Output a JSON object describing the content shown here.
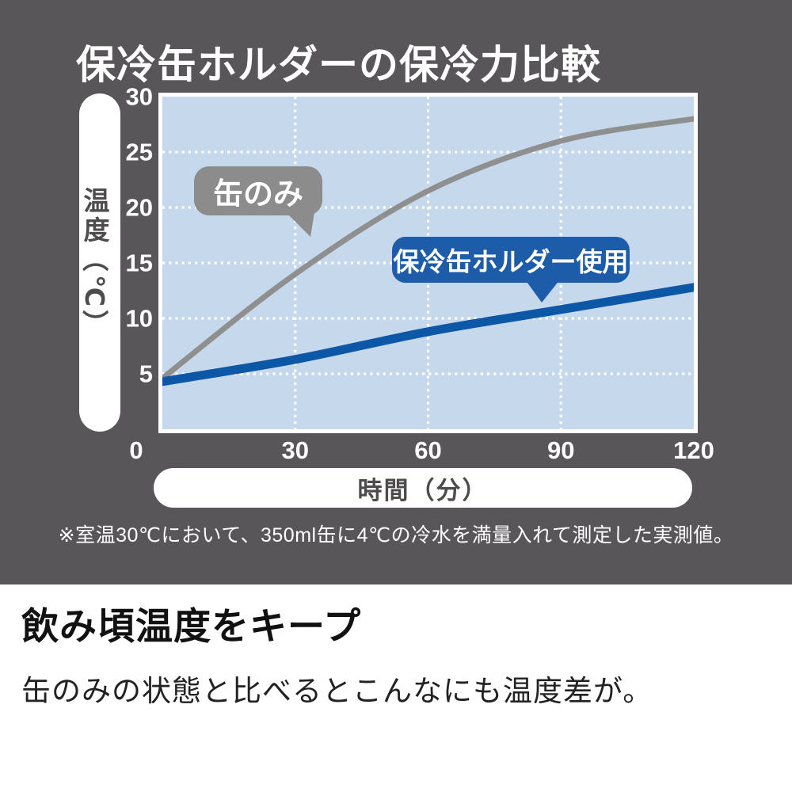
{
  "title": "保冷缶ホルダーの保冷力比較",
  "colors": {
    "panel_background": "#585658",
    "plot_background": "#c6d9ec",
    "grid_white": "#ffffff",
    "can_only_gray": "#8c8c8c",
    "can_only_line_gray": "#8f8f8f",
    "holder_blue": "#1c5ca9",
    "holder_line_blue": "#0c57a6",
    "axis_text_dark": "#4d4b4c"
  },
  "axes": {
    "y_label_main": "温度",
    "y_label_unit": "（℃）",
    "x_label": "時間（分）"
  },
  "labels": {
    "can_only": "缶のみ",
    "holder": "保冷缶ホルダー使用"
  },
  "chart_data": {
    "type": "line",
    "title": "保冷缶ホルダーの保冷力比較",
    "xlabel": "時間（分）",
    "ylabel": "温度（℃）",
    "xlim": [
      0,
      120
    ],
    "ylim": [
      0,
      30
    ],
    "x_ticks": [
      0,
      30,
      60,
      90,
      120
    ],
    "y_ticks": [
      0,
      5,
      10,
      15,
      20,
      25,
      30
    ],
    "grid": "white dotted, inside light-blue plot area",
    "legend_position": "callout-bubbles-on-plot",
    "series": [
      {
        "name": "缶のみ",
        "color": "#8f8f8f",
        "x": [
          0,
          30,
          60,
          90,
          120
        ],
        "values": [
          4.6,
          14,
          21.5,
          26,
          28
        ]
      },
      {
        "name": "保冷缶ホルダー使用",
        "color": "#0c57a6",
        "x": [
          0,
          30,
          60,
          90,
          120
        ],
        "values": [
          4.3,
          6.3,
          8.8,
          10.8,
          12.8
        ]
      }
    ]
  },
  "footnote": "※室温30℃において、350ml缶に4℃の冷水を満量入れて測定した実測値。",
  "bottom": {
    "heading": "飲み頃温度をキープ",
    "body": "缶のみの状態と比べるとこんなにも温度差が。"
  }
}
